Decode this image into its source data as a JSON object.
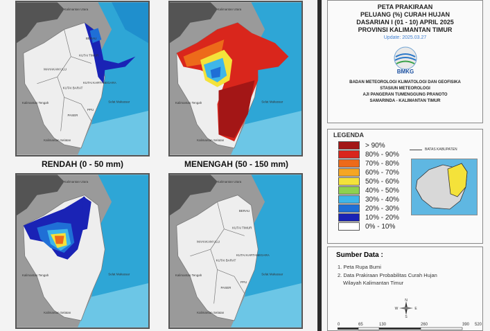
{
  "maps": [
    {
      "id": "rendah",
      "caption": "RENDAH (0 - 50 mm)"
    },
    {
      "id": "menengah",
      "caption": "MENENGAH (50 - 150 mm)"
    },
    {
      "id": "tinggi",
      "caption": ""
    },
    {
      "id": "sangat-tinggi",
      "caption": ""
    }
  ],
  "map_labels": {
    "kaltara": "Kalimantan Utara",
    "kalteng": "Kalimantan Tengah",
    "kalsel": "Kalimantan Selatan",
    "selat": "Selat Makassar",
    "berau": "BERAU",
    "kutim": "KUTAI TIMUR",
    "kukar": "KUTAI KARTANEGARA",
    "kubar": "KUTAI BARAT",
    "mahulu": "MAHAKAM ULU",
    "paser": "PASER",
    "ppu": "PPU"
  },
  "title": {
    "line1": "PETA PRAKIRAAN",
    "line2": "PELUANG (%) CURAH HUJAN",
    "line3": "DASARIAN I (01 - 10) APRIL 2025",
    "line4": "PROVINSI KALIMANTAN TIMUR",
    "update": "Update: 2025.03.27"
  },
  "logo_text": "BMKG",
  "org": {
    "line1": "BADAN METEOROLOGI KLIMATOLOGI DAN GEOFISIKA",
    "line2": "STASIUN METEOROLOGI",
    "line3": "AJI PANGERAN TUMENGGUNG PRANOTO",
    "line4": "SAMARINDA - KALIMANTAN TIMUR"
  },
  "legend": {
    "title": "LEGENDA",
    "boundary_label": "BATAS KABUPATEN",
    "items": [
      {
        "label": "> 90%",
        "color": "#a31616"
      },
      {
        "label": "80% - 90%",
        "color": "#d9261c"
      },
      {
        "label": "70% - 80%",
        "color": "#ed6a1a"
      },
      {
        "label": "60% - 70%",
        "color": "#f5a623"
      },
      {
        "label": "50% - 60%",
        "color": "#f4e23a"
      },
      {
        "label": "40% - 50%",
        "color": "#8fd14f"
      },
      {
        "label": "30% - 40%",
        "color": "#3fb6e8"
      },
      {
        "label": "20% - 30%",
        "color": "#1f6fd6"
      },
      {
        "label": "10% - 20%",
        "color": "#1a23b5"
      },
      {
        "label": "0% - 10%",
        "color": "#ffffff"
      }
    ]
  },
  "source": {
    "title": "Sumber Data :",
    "item1": "1. Peta Rupa Bumi",
    "item2": "2. Data Prakiraan Probabilitas Curah Hujan",
    "item2b": "Wilayah Kalimantan Timur"
  },
  "compass": {
    "n": "N",
    "s": "S",
    "e": "E",
    "w": "W"
  },
  "scale_ticks": [
    "0",
    "65",
    "130",
    "260",
    "390",
    "520"
  ]
}
